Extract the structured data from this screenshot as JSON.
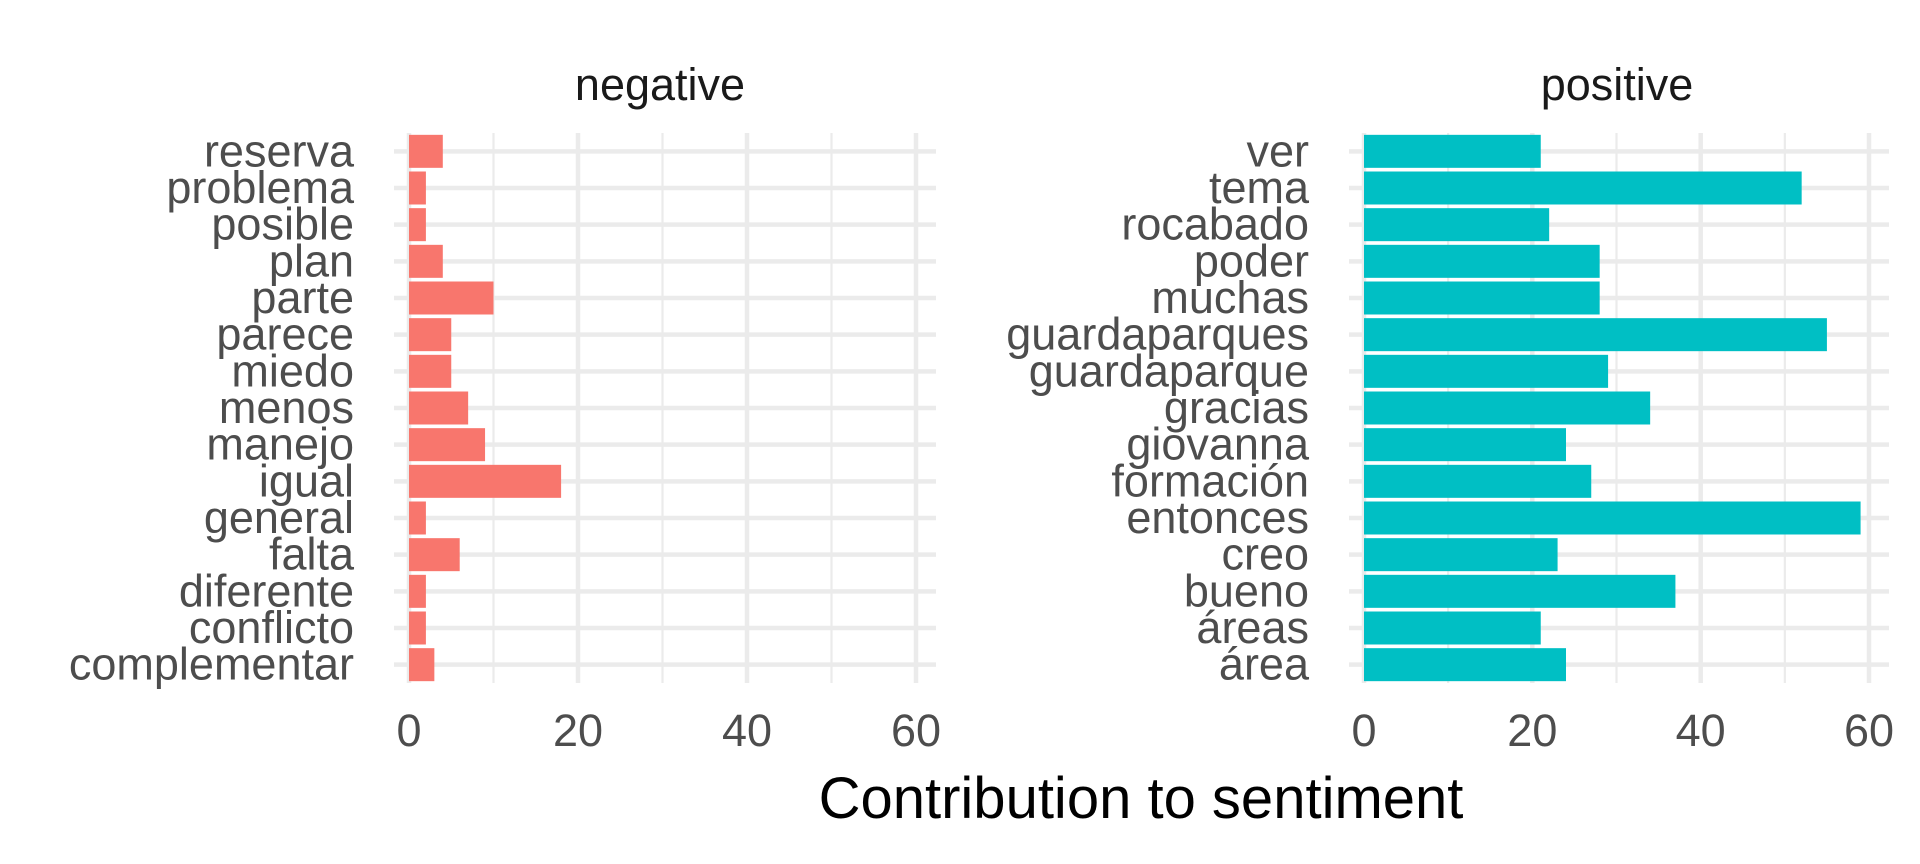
{
  "chart_data": {
    "type": "bar",
    "orientation": "horizontal",
    "xlabel": "Contribution to sentiment",
    "xlim": [
      0,
      60
    ],
    "x_ticks": [
      0,
      20,
      40,
      60
    ],
    "grid": true,
    "panels": [
      {
        "name": "negative",
        "color": "#F8766D",
        "categories": [
          "reserva",
          "problema",
          "posible",
          "plan",
          "parte",
          "parece",
          "miedo",
          "menos",
          "manejo",
          "igual",
          "general",
          "falta",
          "diferente",
          "conflicto",
          "complementar"
        ],
        "values": [
          4,
          2,
          2,
          4,
          10,
          5,
          5,
          7,
          9,
          18,
          2,
          6,
          2,
          2,
          3
        ]
      },
      {
        "name": "positive",
        "color": "#00BFC4",
        "categories": [
          "ver",
          "tema",
          "rocabado",
          "poder",
          "muchas",
          "guardaparques",
          "guardaparque",
          "gracias",
          "giovanna",
          "formación",
          "entonces",
          "creo",
          "bueno",
          "áreas",
          "área"
        ],
        "values": [
          21,
          52,
          22,
          28,
          28,
          55,
          29,
          34,
          24,
          27,
          59,
          23,
          37,
          21,
          24
        ]
      }
    ]
  }
}
